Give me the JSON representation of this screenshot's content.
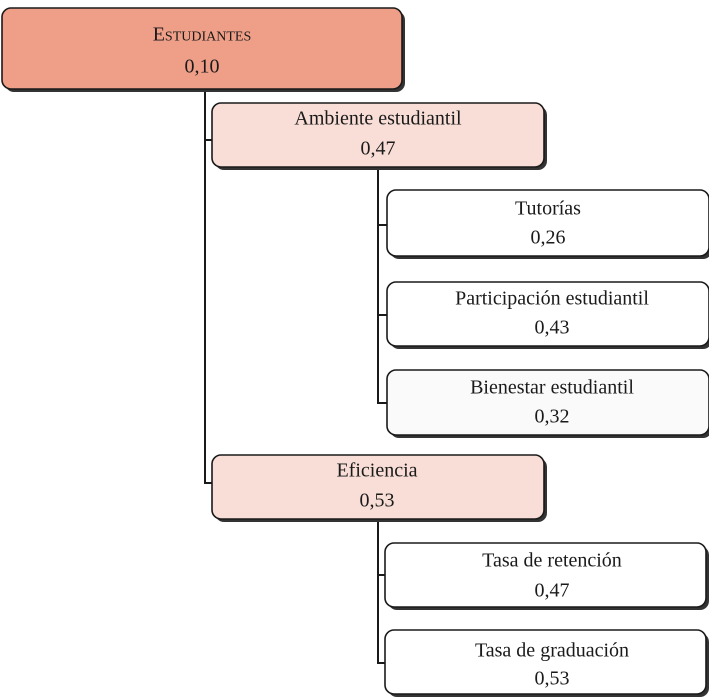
{
  "nodes": [
    {
      "label": "Estudiantes",
      "weight": "0,10"
    },
    {
      "label": "Ambiente estudiantil",
      "weight": "0,47"
    },
    {
      "label": "Tutorías",
      "weight": "0,26"
    },
    {
      "label": "Participación estudiantil",
      "weight": "0,43"
    },
    {
      "label": "Bienestar estudiantil",
      "weight": "0,32"
    },
    {
      "label": "Eficiencia",
      "weight": "0,53"
    },
    {
      "label": "Tasa de retención",
      "weight": "0,47"
    },
    {
      "label": "Tasa de graduación",
      "weight": "0,53"
    }
  ]
}
